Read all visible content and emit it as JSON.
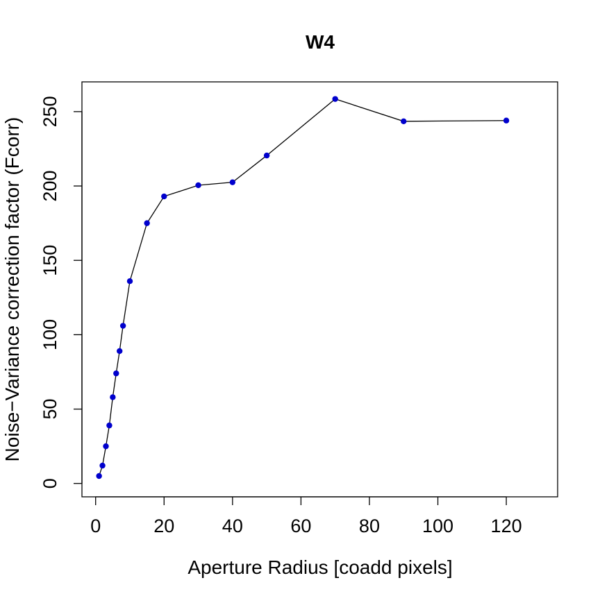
{
  "chart_data": {
    "type": "line",
    "title": "W4",
    "xlabel": "Aperture Radius [coadd pixels]",
    "ylabel": "Noise−Variance correction factor (Fcorr)",
    "xlim": [
      -4,
      135
    ],
    "ylim": [
      -9,
      270
    ],
    "xticks": [
      0,
      20,
      40,
      60,
      80,
      100,
      120
    ],
    "yticks": [
      0,
      50,
      100,
      150,
      200,
      250
    ],
    "grid": false,
    "legend": "none",
    "line_color": "#000000",
    "marker_color": "#0000cd",
    "series": [
      {
        "x": [
          1,
          2,
          3,
          4,
          5,
          6,
          7,
          8,
          10,
          15,
          20,
          30,
          40,
          50,
          70,
          90,
          120
        ],
        "y": [
          5,
          12,
          25,
          39,
          58,
          74,
          89,
          106,
          136,
          175,
          193,
          200.5,
          202.5,
          220.5,
          258.5,
          243.5,
          244
        ]
      }
    ]
  }
}
